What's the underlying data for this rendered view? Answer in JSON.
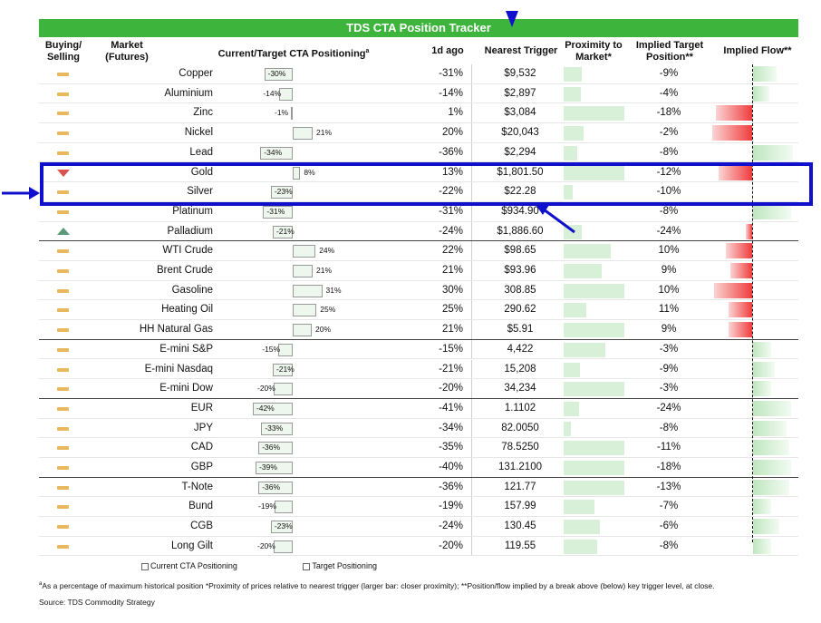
{
  "title": "TDS CTA Position Tracker",
  "headers": {
    "buying_selling": [
      "Buying/",
      "Selling"
    ],
    "market": [
      "Market",
      "(Futures)"
    ],
    "positioning": "Current/Target CTA Positioning",
    "positioning_sup": "a",
    "ago": "1d ago",
    "trigger": "Nearest Trigger",
    "proximity": [
      "Proximity to",
      "Market*"
    ],
    "implied_target": [
      "Implied Target",
      "Position**"
    ],
    "implied_flow": "Implied Flow**"
  },
  "rows": [
    {
      "signal": "flat",
      "market": "Copper",
      "current_label": "-30%",
      "current": -30,
      "target": -30,
      "ago": "-31%",
      "trigger": "$9,532",
      "prox": 0.3,
      "itp": "-9%",
      "flow": 0.6
    },
    {
      "signal": "flat",
      "market": "Aluminium",
      "current_label": "-14%",
      "current": -14,
      "target": -14,
      "ago": "-14%",
      "trigger": "$2,897",
      "prox": 0.28,
      "itp": "-4%",
      "flow": 0.4
    },
    {
      "signal": "flat",
      "market": "Zinc",
      "current_label": "-1%",
      "current": -1,
      "target": -1,
      "ago": "1%",
      "trigger": "$3,084",
      "prox": 1.0,
      "itp": "-18%",
      "flow": -0.9
    },
    {
      "signal": "flat",
      "market": "Nickel",
      "current_label": "21%",
      "current": 21,
      "target": 21,
      "ago": "20%",
      "trigger": "$20,043",
      "prox": 0.33,
      "itp": "-2%",
      "flow": -1.0
    },
    {
      "signal": "flat",
      "market": "Lead",
      "current_label": "-34%",
      "current": -34,
      "target": -34,
      "ago": "-36%",
      "trigger": "$2,294",
      "prox": 0.22,
      "itp": "-8%",
      "flow": 1.0
    },
    {
      "signal": "down",
      "market": "Gold",
      "current_label": "8%",
      "current": 8,
      "target": 8,
      "ago": "13%",
      "trigger": "$1,801.50",
      "prox": 1.0,
      "itp": "-12%",
      "flow": -0.85
    },
    {
      "signal": "flat",
      "market": "Silver",
      "current_label": "-23%",
      "current": -23,
      "target": -23,
      "ago": "-22%",
      "trigger": "$22.28",
      "prox": 0.15,
      "itp": "-10%",
      "flow": 0.0
    },
    {
      "signal": "flat",
      "market": "Platinum",
      "current_label": "-31%",
      "current": -31,
      "target": -31,
      "ago": "-31%",
      "trigger": "$934.90",
      "prox": 0.0,
      "itp": "-8%",
      "flow": 0.95
    },
    {
      "signal": "up",
      "market": "Palladium",
      "current_label": "-21%",
      "current": -21,
      "target": -21,
      "ago": "-24%",
      "trigger": "$1,886.60",
      "prox": 0.3,
      "itp": "-24%",
      "flow": -0.15,
      "sep": true
    },
    {
      "signal": "flat",
      "market": "WTI Crude",
      "current_label": "24%",
      "current": 24,
      "target": 24,
      "ago": "22%",
      "trigger": "$98.65",
      "prox": 0.78,
      "itp": "10%",
      "flow": -0.65
    },
    {
      "signal": "flat",
      "market": "Brent Crude",
      "current_label": "21%",
      "current": 21,
      "target": 21,
      "ago": "21%",
      "trigger": "$93.96",
      "prox": 0.62,
      "itp": "9%",
      "flow": -0.55
    },
    {
      "signal": "flat",
      "market": "Gasoline",
      "current_label": "31%",
      "current": 31,
      "target": 31,
      "ago": "30%",
      "trigger": "308.85",
      "prox": 1.0,
      "itp": "10%",
      "flow": -0.95
    },
    {
      "signal": "flat",
      "market": "Heating Oil",
      "current_label": "25%",
      "current": 25,
      "target": 25,
      "ago": "25%",
      "trigger": "290.62",
      "prox": 0.38,
      "itp": "11%",
      "flow": -0.6
    },
    {
      "signal": "flat",
      "market": "HH Natural Gas",
      "current_label": "20%",
      "current": 20,
      "target": 20,
      "ago": "21%",
      "trigger": "$5.91",
      "prox": 1.0,
      "itp": "9%",
      "flow": -0.6,
      "sep": true
    },
    {
      "signal": "flat",
      "market": "E-mini S&P",
      "current_label": "-15%",
      "current": -15,
      "target": -15,
      "ago": "-15%",
      "trigger": "4,422",
      "prox": 0.68,
      "itp": "-3%",
      "flow": 0.45
    },
    {
      "signal": "flat",
      "market": "E-mini Nasdaq",
      "current_label": "-21%",
      "current": -21,
      "target": -21,
      "ago": "-21%",
      "trigger": "15,208",
      "prox": 0.27,
      "itp": "-9%",
      "flow": 0.55
    },
    {
      "signal": "flat",
      "market": "E-mini Dow",
      "current_label": "-20%",
      "current": -20,
      "target": -20,
      "ago": "-20%",
      "trigger": "34,234",
      "prox": 1.0,
      "itp": "-3%",
      "flow": 0.45,
      "sep": true
    },
    {
      "signal": "flat",
      "market": "EUR",
      "current_label": "-42%",
      "current": -42,
      "target": -42,
      "ago": "-41%",
      "trigger": "1.1102",
      "prox": 0.25,
      "itp": "-24%",
      "flow": 0.95
    },
    {
      "signal": "flat",
      "market": "JPY",
      "current_label": "-33%",
      "current": -33,
      "target": -33,
      "ago": "-34%",
      "trigger": "82.0050",
      "prox": 0.12,
      "itp": "-8%",
      "flow": 0.85
    },
    {
      "signal": "flat",
      "market": "CAD",
      "current_label": "-36%",
      "current": -36,
      "target": -36,
      "ago": "-35%",
      "trigger": "78.5250",
      "prox": 1.0,
      "itp": "-11%",
      "flow": 0.9
    },
    {
      "signal": "flat",
      "market": "GBP",
      "current_label": "-39%",
      "current": -39,
      "target": -39,
      "ago": "-40%",
      "trigger": "131.2100",
      "prox": 1.0,
      "itp": "-18%",
      "flow": 0.95,
      "sep": true
    },
    {
      "signal": "flat",
      "market": "T-Note",
      "current_label": "-36%",
      "current": -36,
      "target": -36,
      "ago": "-36%",
      "trigger": "121.77",
      "prox": 1.0,
      "itp": "-13%",
      "flow": 0.9
    },
    {
      "signal": "flat",
      "market": "Bund",
      "current_label": "-19%",
      "current": -19,
      "target": -19,
      "ago": "-19%",
      "trigger": "157.99",
      "prox": 0.5,
      "itp": "-7%",
      "flow": 0.45
    },
    {
      "signal": "flat",
      "market": "CGB",
      "current_label": "-23%",
      "current": -23,
      "target": -23,
      "ago": "-24%",
      "trigger": "130.45",
      "prox": 0.6,
      "itp": "-6%",
      "flow": 0.65
    },
    {
      "signal": "flat",
      "market": "Long Gilt",
      "current_label": "-20%",
      "current": -20,
      "target": -20,
      "ago": "-20%",
      "trigger": "119.55",
      "prox": 0.55,
      "itp": "-8%",
      "flow": 0.45
    }
  ],
  "legend": {
    "current": "Current CTA Positioning",
    "target": "Target Positioning"
  },
  "footnote": "As a percentage of maximum historical position *Proximity of prices relative to nearest trigger (larger bar: closer proximity); **Position/flow implied by a break above (below) key trigger level, at close.",
  "footnote_sup": "a",
  "source": "Source: TDS Commodity Strategy",
  "colors": {
    "banner": "#3db53d",
    "flow_pos": "#cfeccf",
    "flow_neg": "#f05050",
    "prox": "#d7f0d7",
    "annotation": "#1010cc"
  }
}
